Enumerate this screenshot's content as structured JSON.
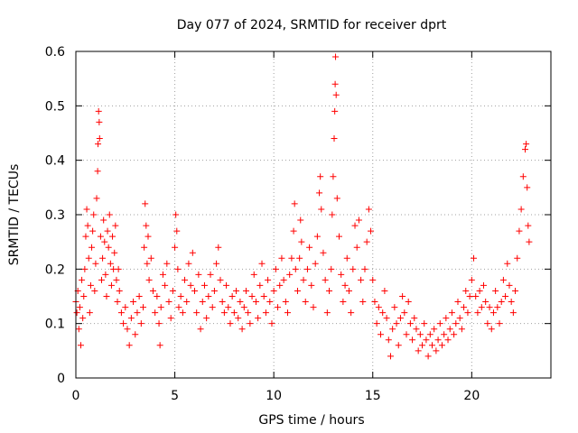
{
  "chart_data": {
    "type": "scatter",
    "title": "Day 077 of 2024, SRMTID for receiver dprt",
    "xlabel": "GPS time / hours",
    "ylabel": "SRMTID / TECUs",
    "xlim": [
      0,
      24
    ],
    "ylim": [
      0,
      0.6
    ],
    "xticks": [
      0,
      5,
      10,
      15,
      20
    ],
    "xtick_labels": [
      "0",
      "5",
      "10",
      "15",
      "20"
    ],
    "yticks": [
      0,
      0.1,
      0.2,
      0.3,
      0.4,
      0.5,
      0.6
    ],
    "ytick_labels": [
      "0",
      "0.1",
      "0.2",
      "0.3",
      "0.4",
      "0.5",
      "0.6"
    ],
    "grid": true,
    "marker": "+",
    "color": "#ff0000",
    "series": [
      {
        "name": "dprt",
        "points": [
          [
            0.0,
            0.14
          ],
          [
            0.05,
            0.12
          ],
          [
            0.1,
            0.16
          ],
          [
            0.15,
            0.09
          ],
          [
            0.2,
            0.13
          ],
          [
            0.25,
            0.06
          ],
          [
            0.3,
            0.18
          ],
          [
            0.35,
            0.11
          ],
          [
            0.4,
            0.15
          ],
          [
            0.45,
            0.2
          ],
          [
            0.5,
            0.26
          ],
          [
            0.55,
            0.31
          ],
          [
            0.6,
            0.28
          ],
          [
            0.65,
            0.22
          ],
          [
            0.7,
            0.12
          ],
          [
            0.75,
            0.17
          ],
          [
            0.8,
            0.24
          ],
          [
            0.85,
            0.27
          ],
          [
            0.9,
            0.3
          ],
          [
            0.95,
            0.16
          ],
          [
            1.0,
            0.21
          ],
          [
            1.05,
            0.33
          ],
          [
            1.1,
            0.38
          ],
          [
            1.12,
            0.43
          ],
          [
            1.15,
            0.49
          ],
          [
            1.18,
            0.47
          ],
          [
            1.2,
            0.44
          ],
          [
            1.25,
            0.26
          ],
          [
            1.3,
            0.18
          ],
          [
            1.35,
            0.22
          ],
          [
            1.4,
            0.29
          ],
          [
            1.45,
            0.25
          ],
          [
            1.5,
            0.19
          ],
          [
            1.55,
            0.15
          ],
          [
            1.6,
            0.27
          ],
          [
            1.65,
            0.24
          ],
          [
            1.7,
            0.3
          ],
          [
            1.75,
            0.21
          ],
          [
            1.8,
            0.17
          ],
          [
            1.85,
            0.26
          ],
          [
            1.9,
            0.2
          ],
          [
            1.95,
            0.23
          ],
          [
            2.0,
            0.28
          ],
          [
            2.05,
            0.18
          ],
          [
            2.1,
            0.14
          ],
          [
            2.15,
            0.2
          ],
          [
            2.2,
            0.16
          ],
          [
            2.3,
            0.12
          ],
          [
            2.4,
            0.1
          ],
          [
            2.5,
            0.13
          ],
          [
            2.6,
            0.09
          ],
          [
            2.7,
            0.06
          ],
          [
            2.8,
            0.11
          ],
          [
            2.9,
            0.14
          ],
          [
            3.0,
            0.08
          ],
          [
            3.1,
            0.12
          ],
          [
            3.2,
            0.15
          ],
          [
            3.3,
            0.1
          ],
          [
            3.4,
            0.13
          ],
          [
            3.45,
            0.24
          ],
          [
            3.5,
            0.32
          ],
          [
            3.55,
            0.28
          ],
          [
            3.6,
            0.21
          ],
          [
            3.65,
            0.26
          ],
          [
            3.7,
            0.18
          ],
          [
            3.8,
            0.22
          ],
          [
            3.9,
            0.16
          ],
          [
            4.0,
            0.12
          ],
          [
            4.1,
            0.15
          ],
          [
            4.2,
            0.1
          ],
          [
            4.25,
            0.06
          ],
          [
            4.3,
            0.13
          ],
          [
            4.4,
            0.19
          ],
          [
            4.5,
            0.17
          ],
          [
            4.6,
            0.21
          ],
          [
            4.7,
            0.14
          ],
          [
            4.8,
            0.11
          ],
          [
            4.9,
            0.16
          ],
          [
            5.0,
            0.24
          ],
          [
            5.05,
            0.3
          ],
          [
            5.1,
            0.27
          ],
          [
            5.15,
            0.2
          ],
          [
            5.2,
            0.13
          ],
          [
            5.3,
            0.15
          ],
          [
            5.4,
            0.12
          ],
          [
            5.5,
            0.18
          ],
          [
            5.6,
            0.14
          ],
          [
            5.7,
            0.21
          ],
          [
            5.8,
            0.17
          ],
          [
            5.9,
            0.23
          ],
          [
            6.0,
            0.16
          ],
          [
            6.1,
            0.12
          ],
          [
            6.2,
            0.19
          ],
          [
            6.3,
            0.09
          ],
          [
            6.4,
            0.14
          ],
          [
            6.5,
            0.17
          ],
          [
            6.6,
            0.11
          ],
          [
            6.7,
            0.15
          ],
          [
            6.8,
            0.19
          ],
          [
            6.9,
            0.13
          ],
          [
            7.0,
            0.16
          ],
          [
            7.1,
            0.21
          ],
          [
            7.2,
            0.24
          ],
          [
            7.3,
            0.18
          ],
          [
            7.4,
            0.14
          ],
          [
            7.5,
            0.12
          ],
          [
            7.6,
            0.17
          ],
          [
            7.7,
            0.13
          ],
          [
            7.8,
            0.1
          ],
          [
            7.9,
            0.15
          ],
          [
            8.0,
            0.12
          ],
          [
            8.1,
            0.16
          ],
          [
            8.2,
            0.11
          ],
          [
            8.3,
            0.14
          ],
          [
            8.4,
            0.09
          ],
          [
            8.5,
            0.13
          ],
          [
            8.6,
            0.16
          ],
          [
            8.7,
            0.12
          ],
          [
            8.8,
            0.1
          ],
          [
            8.9,
            0.15
          ],
          [
            9.0,
            0.19
          ],
          [
            9.1,
            0.14
          ],
          [
            9.2,
            0.11
          ],
          [
            9.3,
            0.17
          ],
          [
            9.4,
            0.21
          ],
          [
            9.5,
            0.15
          ],
          [
            9.6,
            0.12
          ],
          [
            9.7,
            0.18
          ],
          [
            9.8,
            0.14
          ],
          [
            9.9,
            0.1
          ],
          [
            10.0,
            0.16
          ],
          [
            10.1,
            0.2
          ],
          [
            10.2,
            0.13
          ],
          [
            10.3,
            0.17
          ],
          [
            10.4,
            0.22
          ],
          [
            10.5,
            0.18
          ],
          [
            10.6,
            0.14
          ],
          [
            10.7,
            0.12
          ],
          [
            10.8,
            0.19
          ],
          [
            10.9,
            0.22
          ],
          [
            11.0,
            0.27
          ],
          [
            11.05,
            0.32
          ],
          [
            11.1,
            0.2
          ],
          [
            11.2,
            0.16
          ],
          [
            11.3,
            0.22
          ],
          [
            11.35,
            0.29
          ],
          [
            11.4,
            0.25
          ],
          [
            11.5,
            0.18
          ],
          [
            11.6,
            0.14
          ],
          [
            11.7,
            0.2
          ],
          [
            11.8,
            0.24
          ],
          [
            11.9,
            0.17
          ],
          [
            12.0,
            0.13
          ],
          [
            12.1,
            0.21
          ],
          [
            12.2,
            0.26
          ],
          [
            12.3,
            0.34
          ],
          [
            12.35,
            0.37
          ],
          [
            12.4,
            0.31
          ],
          [
            12.5,
            0.23
          ],
          [
            12.6,
            0.18
          ],
          [
            12.7,
            0.12
          ],
          [
            12.8,
            0.16
          ],
          [
            12.9,
            0.2
          ],
          [
            12.95,
            0.3
          ],
          [
            13.0,
            0.37
          ],
          [
            13.05,
            0.44
          ],
          [
            13.08,
            0.49
          ],
          [
            13.1,
            0.54
          ],
          [
            13.12,
            0.59
          ],
          [
            13.15,
            0.52
          ],
          [
            13.2,
            0.33
          ],
          [
            13.3,
            0.26
          ],
          [
            13.4,
            0.19
          ],
          [
            13.5,
            0.14
          ],
          [
            13.6,
            0.17
          ],
          [
            13.7,
            0.22
          ],
          [
            13.8,
            0.16
          ],
          [
            13.9,
            0.12
          ],
          [
            14.0,
            0.2
          ],
          [
            14.1,
            0.28
          ],
          [
            14.2,
            0.24
          ],
          [
            14.3,
            0.29
          ],
          [
            14.4,
            0.18
          ],
          [
            14.5,
            0.14
          ],
          [
            14.6,
            0.2
          ],
          [
            14.7,
            0.25
          ],
          [
            14.8,
            0.31
          ],
          [
            14.9,
            0.27
          ],
          [
            15.0,
            0.18
          ],
          [
            15.1,
            0.14
          ],
          [
            15.2,
            0.1
          ],
          [
            15.3,
            0.13
          ],
          [
            15.4,
            0.08
          ],
          [
            15.5,
            0.12
          ],
          [
            15.6,
            0.16
          ],
          [
            15.7,
            0.11
          ],
          [
            15.8,
            0.07
          ],
          [
            15.9,
            0.04
          ],
          [
            16.0,
            0.09
          ],
          [
            16.1,
            0.13
          ],
          [
            16.2,
            0.1
          ],
          [
            16.3,
            0.06
          ],
          [
            16.4,
            0.11
          ],
          [
            16.5,
            0.15
          ],
          [
            16.6,
            0.12
          ],
          [
            16.7,
            0.08
          ],
          [
            16.8,
            0.14
          ],
          [
            16.9,
            0.1
          ],
          [
            17.0,
            0.07
          ],
          [
            17.1,
            0.11
          ],
          [
            17.2,
            0.09
          ],
          [
            17.3,
            0.05
          ],
          [
            17.4,
            0.08
          ],
          [
            17.5,
            0.06
          ],
          [
            17.6,
            0.1
          ],
          [
            17.7,
            0.07
          ],
          [
            17.8,
            0.04
          ],
          [
            17.9,
            0.08
          ],
          [
            18.0,
            0.06
          ],
          [
            18.1,
            0.09
          ],
          [
            18.2,
            0.05
          ],
          [
            18.3,
            0.07
          ],
          [
            18.4,
            0.1
          ],
          [
            18.5,
            0.06
          ],
          [
            18.6,
            0.08
          ],
          [
            18.7,
            0.11
          ],
          [
            18.8,
            0.07
          ],
          [
            18.9,
            0.09
          ],
          [
            19.0,
            0.12
          ],
          [
            19.1,
            0.08
          ],
          [
            19.2,
            0.1
          ],
          [
            19.3,
            0.14
          ],
          [
            19.4,
            0.11
          ],
          [
            19.5,
            0.09
          ],
          [
            19.6,
            0.13
          ],
          [
            19.7,
            0.16
          ],
          [
            19.8,
            0.12
          ],
          [
            19.9,
            0.15
          ],
          [
            20.0,
            0.18
          ],
          [
            20.1,
            0.22
          ],
          [
            20.2,
            0.15
          ],
          [
            20.3,
            0.12
          ],
          [
            20.4,
            0.16
          ],
          [
            20.5,
            0.13
          ],
          [
            20.6,
            0.17
          ],
          [
            20.7,
            0.14
          ],
          [
            20.8,
            0.1
          ],
          [
            20.9,
            0.13
          ],
          [
            21.0,
            0.09
          ],
          [
            21.1,
            0.12
          ],
          [
            21.2,
            0.16
          ],
          [
            21.3,
            0.13
          ],
          [
            21.4,
            0.1
          ],
          [
            21.5,
            0.14
          ],
          [
            21.6,
            0.18
          ],
          [
            21.7,
            0.15
          ],
          [
            21.8,
            0.21
          ],
          [
            21.9,
            0.17
          ],
          [
            22.0,
            0.14
          ],
          [
            22.1,
            0.12
          ],
          [
            22.2,
            0.16
          ],
          [
            22.3,
            0.22
          ],
          [
            22.4,
            0.27
          ],
          [
            22.5,
            0.31
          ],
          [
            22.6,
            0.37
          ],
          [
            22.7,
            0.42
          ],
          [
            22.75,
            0.43
          ],
          [
            22.8,
            0.35
          ],
          [
            22.85,
            0.28
          ],
          [
            22.9,
            0.25
          ]
        ]
      }
    ]
  }
}
